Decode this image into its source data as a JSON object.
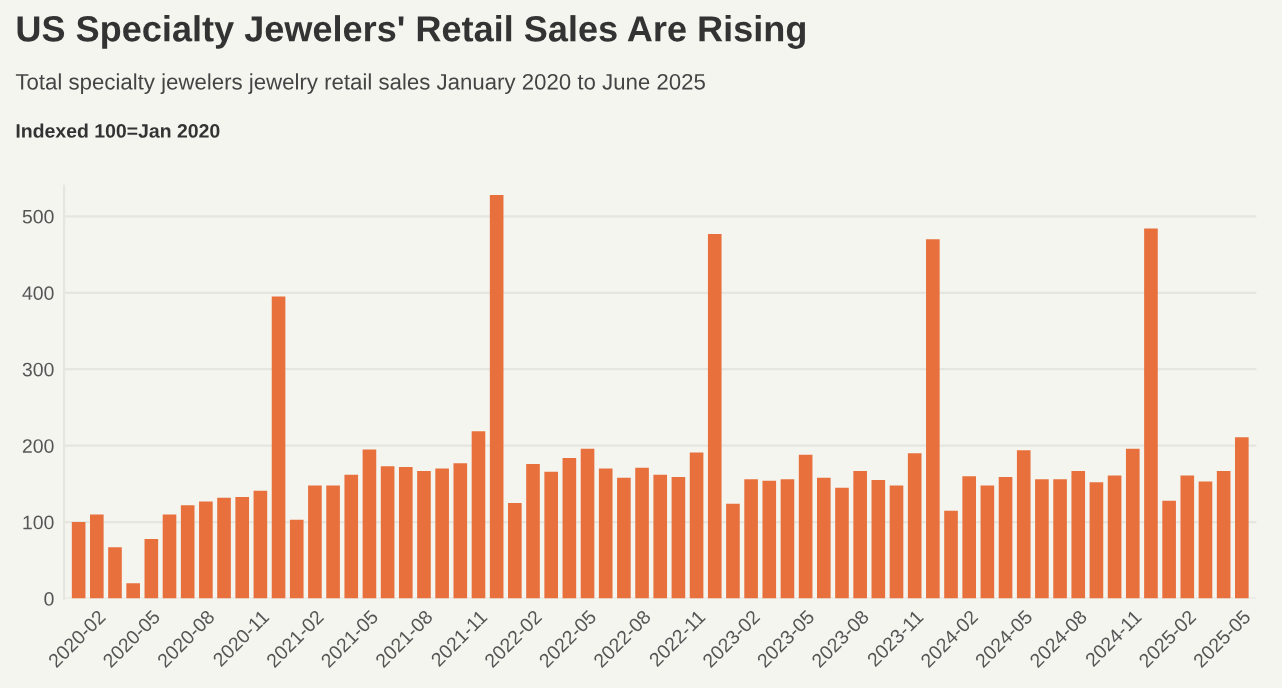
{
  "chart_data": {
    "type": "bar",
    "title": "US Specialty Jewelers' Retail Sales Are Rising",
    "subtitle": "Total specialty jewelers jewelry retail sales January 2020 to June 2025",
    "ylabel": "Indexed 100=Jan 2020",
    "categories": [
      null,
      "2020-02",
      null,
      null,
      "2020-05",
      null,
      null,
      "2020-08",
      null,
      null,
      "2020-11",
      null,
      null,
      "2021-02",
      null,
      null,
      "2021-05",
      null,
      null,
      "2021-08",
      null,
      null,
      "2021-11",
      null,
      null,
      "2022-02",
      null,
      null,
      "2022-05",
      null,
      null,
      "2022-08",
      null,
      null,
      "2022-11",
      null,
      null,
      "2023-02",
      null,
      null,
      "2023-05",
      null,
      null,
      "2023-08",
      null,
      null,
      "2023-11",
      null,
      null,
      "2024-02",
      null,
      null,
      "2024-05",
      null,
      null,
      "2024-08",
      null,
      null,
      "2024-11",
      null,
      null,
      "2025-02",
      null,
      null,
      "2025-05"
    ],
    "values": [
      100,
      110,
      67,
      20,
      78,
      110,
      122,
      127,
      132,
      133,
      141,
      395,
      103,
      148,
      148,
      162,
      195,
      173,
      172,
      167,
      170,
      177,
      219,
      528,
      125,
      176,
      166,
      184,
      196,
      170,
      158,
      171,
      162,
      159,
      191,
      477,
      124,
      156,
      154,
      156,
      188,
      158,
      145,
      167,
      155,
      148,
      190,
      470,
      115,
      160,
      148,
      159,
      194,
      156,
      156,
      167,
      152,
      161,
      196,
      484,
      128,
      161,
      153,
      167,
      211
    ],
    "color": "#e8703d",
    "ylim": [
      0,
      540
    ],
    "yticks": [
      0,
      100,
      200,
      300,
      400,
      500
    ],
    "grid": "y"
  }
}
